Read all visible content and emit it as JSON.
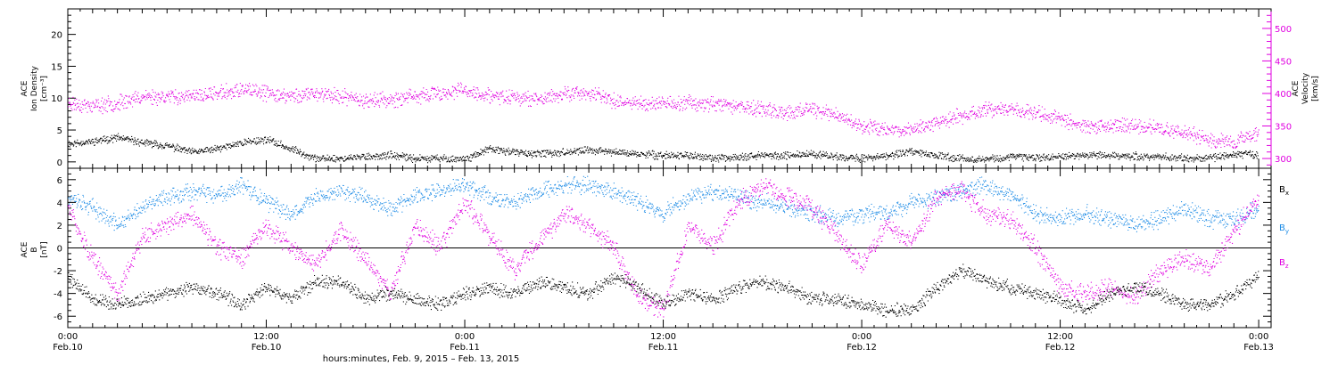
{
  "colors": {
    "black": "#000000",
    "magenta": "#e000e0",
    "blue": "#1e8ce6"
  },
  "chart_data": [
    {
      "type": "scatter",
      "panel": "top",
      "ylabel_lines": [
        "ACE",
        "Ion Density",
        "[cm⁻³]"
      ],
      "right_ylabel_lines": [
        "ACE",
        "Velocity",
        "[km/s]"
      ],
      "x_range_hours": [
        0,
        97
      ],
      "ylim": [
        -1,
        24
      ],
      "yticks": [
        0,
        5,
        10,
        15,
        20
      ],
      "right_ylim": [
        285,
        530
      ],
      "right_yticks": [
        300,
        350,
        400,
        450,
        500
      ],
      "grid": false,
      "series": [
        {
          "name": "",
          "axis": "left",
          "color": "black",
          "x": [
            0,
            2,
            4,
            6,
            8,
            10,
            12,
            14,
            16,
            18,
            20,
            22,
            24,
            26,
            28,
            30,
            32,
            34,
            36,
            38,
            40,
            42,
            44,
            46,
            48,
            50,
            52,
            54,
            56,
            58,
            60,
            62,
            64,
            66,
            68,
            70,
            72,
            74,
            76,
            78,
            80,
            82,
            84,
            86,
            88,
            90,
            92,
            94,
            96
          ],
          "y": [
            2.8,
            3.2,
            3.8,
            3.0,
            2.5,
            1.5,
            2.0,
            3.0,
            3.5,
            2.0,
            0.5,
            0.5,
            0.8,
            1.0,
            0.5,
            0.5,
            0.4,
            2.0,
            1.5,
            1.2,
            1.5,
            1.8,
            1.5,
            1.2,
            1.0,
            1.0,
            0.5,
            0.8,
            1.0,
            1.0,
            1.2,
            0.8,
            0.5,
            1.0,
            1.5,
            1.0,
            0.5,
            0.4,
            0.8,
            0.7,
            0.8,
            1.0,
            1.0,
            0.9,
            0.8,
            0.6,
            0.5,
            1.2,
            1.0
          ]
        },
        {
          "name": "",
          "axis": "right",
          "color": "magenta",
          "x": [
            0,
            2,
            4,
            6,
            8,
            10,
            12,
            14,
            16,
            18,
            20,
            22,
            24,
            26,
            28,
            30,
            32,
            34,
            36,
            38,
            40,
            42,
            44,
            46,
            48,
            50,
            52,
            54,
            56,
            58,
            60,
            62,
            64,
            66,
            68,
            70,
            72,
            74,
            76,
            78,
            80,
            82,
            84,
            86,
            88,
            90,
            92,
            94,
            96
          ],
          "y": [
            385,
            380,
            385,
            395,
            395,
            395,
            400,
            405,
            400,
            395,
            400,
            395,
            390,
            390,
            395,
            400,
            405,
            395,
            395,
            390,
            400,
            400,
            390,
            385,
            385,
            385,
            385,
            380,
            375,
            370,
            375,
            365,
            350,
            345,
            345,
            355,
            365,
            375,
            375,
            370,
            360,
            350,
            350,
            350,
            345,
            340,
            330,
            325,
            340
          ]
        }
      ]
    },
    {
      "type": "scatter",
      "panel": "bottom",
      "ylabel_lines": [
        "ACE",
        "B",
        "[nT]"
      ],
      "x_range_hours": [
        0,
        97
      ],
      "ylim": [
        -7,
        7
      ],
      "yticks": [
        -6,
        -4,
        -2,
        0,
        2,
        4,
        6
      ],
      "zero_line": true,
      "legend": "right",
      "xlabel": "hours:minutes, Feb.  9, 2015 – Feb. 13, 2015",
      "xticks": [
        {
          "hour": 0,
          "time": "0:00",
          "date": "Feb.10"
        },
        {
          "hour": 16,
          "time": "12:00",
          "date": "Feb.10"
        },
        {
          "hour": 32,
          "time": "0:00",
          "date": "Feb.11"
        },
        {
          "hour": 48,
          "time": "12:00",
          "date": "Feb.11"
        },
        {
          "hour": 64,
          "time": "0:00",
          "date": "Feb.12"
        },
        {
          "hour": 80,
          "time": "12:00",
          "date": "Feb.12"
        },
        {
          "hour": 96,
          "time": "0:00",
          "date": "Feb.13"
        }
      ],
      "series": [
        {
          "name": "Bx",
          "name_base": "B",
          "name_sub": "x",
          "color": "black",
          "x": [
            0,
            2,
            4,
            6,
            8,
            10,
            12,
            14,
            16,
            18,
            20,
            22,
            24,
            26,
            28,
            30,
            32,
            34,
            36,
            38,
            40,
            42,
            44,
            46,
            48,
            50,
            52,
            54,
            56,
            58,
            60,
            62,
            64,
            66,
            68,
            70,
            72,
            74,
            76,
            78,
            80,
            82,
            84,
            86,
            88,
            90,
            92,
            94,
            96
          ],
          "y": [
            -2.5,
            -4.5,
            -5.0,
            -4.5,
            -4.0,
            -3.5,
            -4.0,
            -5.0,
            -3.5,
            -4.5,
            -3.0,
            -3.0,
            -4.5,
            -4.0,
            -4.5,
            -5.0,
            -4.0,
            -3.5,
            -4.0,
            -3.0,
            -3.5,
            -4.0,
            -2.5,
            -3.5,
            -5.0,
            -4.0,
            -4.5,
            -3.5,
            -3.0,
            -3.5,
            -4.5,
            -4.5,
            -5.0,
            -5.5,
            -5.5,
            -3.5,
            -2.0,
            -3.0,
            -3.5,
            -4.0,
            -4.5,
            -5.5,
            -4.0,
            -3.5,
            -4.0,
            -5.0,
            -5.0,
            -4.0,
            -2.5
          ]
        },
        {
          "name": "By",
          "name_base": "B",
          "name_sub": "y",
          "color": "blue",
          "x": [
            0,
            2,
            4,
            6,
            8,
            10,
            12,
            14,
            16,
            18,
            20,
            22,
            24,
            26,
            28,
            30,
            32,
            34,
            36,
            38,
            40,
            42,
            44,
            46,
            48,
            50,
            52,
            54,
            56,
            58,
            60,
            62,
            64,
            66,
            68,
            70,
            72,
            74,
            76,
            78,
            80,
            82,
            84,
            86,
            88,
            90,
            92,
            94,
            96
          ],
          "y": [
            4.5,
            3.5,
            2.0,
            3.5,
            4.5,
            5.0,
            4.5,
            5.5,
            4.0,
            3.0,
            4.5,
            5.0,
            4.5,
            3.5,
            4.5,
            5.0,
            5.5,
            4.5,
            4.0,
            5.0,
            5.5,
            5.5,
            5.0,
            4.0,
            3.0,
            4.5,
            5.0,
            4.5,
            4.0,
            3.5,
            3.0,
            2.5,
            3.0,
            3.0,
            4.0,
            4.5,
            5.0,
            5.5,
            4.5,
            3.0,
            2.5,
            3.0,
            2.5,
            2.0,
            2.5,
            3.5,
            2.5,
            2.5,
            3.5
          ]
        },
        {
          "name": "Bz",
          "name_base": "B",
          "name_sub": "z",
          "color": "magenta",
          "x": [
            0,
            2,
            4,
            6,
            8,
            10,
            12,
            14,
            16,
            18,
            20,
            22,
            24,
            26,
            28,
            30,
            32,
            34,
            36,
            38,
            40,
            42,
            44,
            46,
            48,
            50,
            52,
            54,
            56,
            58,
            60,
            62,
            64,
            66,
            68,
            70,
            72,
            74,
            76,
            78,
            80,
            82,
            84,
            86,
            88,
            90,
            92,
            94,
            96
          ],
          "y": [
            3.5,
            -1.0,
            -4.0,
            1.0,
            2.0,
            3.0,
            0.0,
            -1.0,
            2.0,
            0.0,
            -1.5,
            1.5,
            -1.0,
            -4.0,
            2.0,
            0.0,
            4.0,
            1.0,
            -2.0,
            0.5,
            3.0,
            2.0,
            0.0,
            -4.5,
            -5.5,
            2.0,
            0.0,
            4.0,
            5.5,
            4.5,
            3.5,
            1.0,
            -1.5,
            2.0,
            0.5,
            4.5,
            5.0,
            3.0,
            2.5,
            0.0,
            -3.5,
            -4.0,
            -3.5,
            -4.5,
            -2.0,
            -1.0,
            -2.0,
            1.5,
            4.5
          ]
        }
      ]
    }
  ]
}
